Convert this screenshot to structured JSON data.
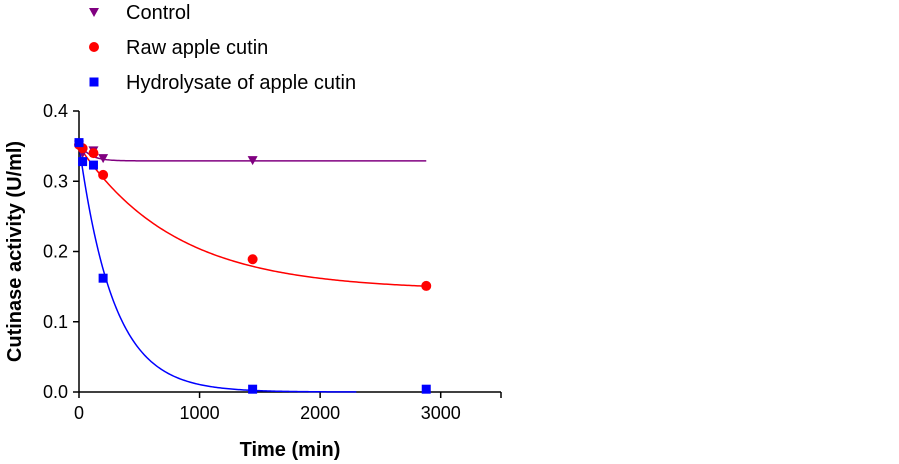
{
  "chart_data": {
    "type": "scatter",
    "xlabel": "Time (min)",
    "ylabel": "Cutinase activity (U/ml)",
    "xlim": [
      0,
      3500
    ],
    "ylim": [
      0,
      0.4
    ],
    "x_ticks": [
      "0",
      "1000",
      "2000",
      "3000"
    ],
    "y_ticks": [
      "0.0",
      "0.1",
      "0.2",
      "0.3",
      "0.4"
    ],
    "grid": false,
    "legend_position": "top-left",
    "series": [
      {
        "name": "Control",
        "marker": "triangle-down",
        "color": "#800080",
        "points": [
          [
            0,
            0.352
          ],
          [
            30,
            0.34
          ],
          [
            120,
            0.344
          ],
          [
            200,
            0.333
          ],
          [
            1440,
            0.33
          ]
        ],
        "fit": {
          "y0": 0.355,
          "plateau": 0.329,
          "k": 0.012,
          "x_end": 2880
        }
      },
      {
        "name": "Raw apple cutin",
        "marker": "circle",
        "color": "#ff0000",
        "points": [
          [
            0,
            0.352
          ],
          [
            30,
            0.347
          ],
          [
            120,
            0.34
          ],
          [
            200,
            0.309
          ],
          [
            1440,
            0.189
          ],
          [
            2880,
            0.151
          ]
        ],
        "fit": {
          "y0": 0.35,
          "plateau": 0.145,
          "k": 0.00125,
          "x_end": 2880
        }
      },
      {
        "name": "Hydrolysate of apple cutin",
        "marker": "square",
        "color": "#0000ff",
        "points": [
          [
            0,
            0.355
          ],
          [
            30,
            0.328
          ],
          [
            120,
            0.323
          ],
          [
            200,
            0.162
          ],
          [
            1440,
            0.004
          ],
          [
            2880,
            0.004
          ]
        ],
        "fit": {
          "y0": 0.352,
          "plateau": 0.0,
          "k": 0.0035,
          "x_end": 2300
        }
      }
    ]
  }
}
